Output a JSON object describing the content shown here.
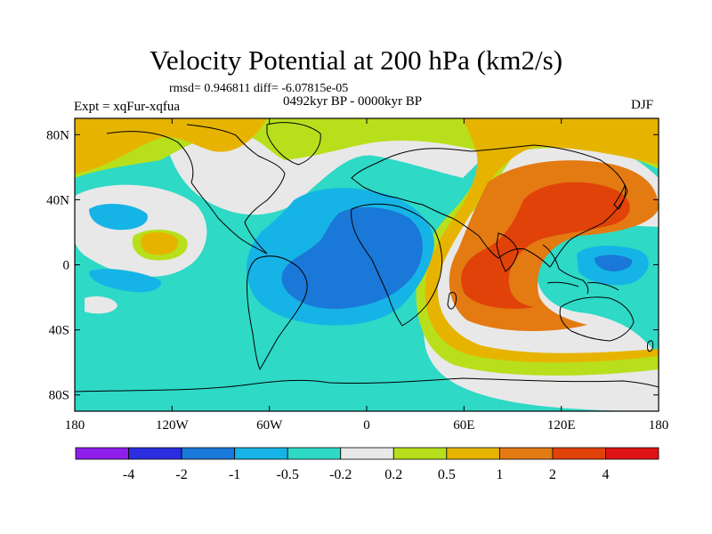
{
  "title": "Velocity Potential at 200 hPa (km2/s)",
  "stats": "rmsd= 0.946811 diff= -6.07815e-05",
  "period": "0492kyr BP - 0000kyr BP",
  "experiment": "Expt = xqFur-xqfua",
  "season": "DJF",
  "map": {
    "projection": "cylindrical-equidistant",
    "lon_range": [
      -180,
      180
    ],
    "lat_range": [
      -90,
      90
    ],
    "coastlines": true
  },
  "axes": {
    "x_ticks": [
      {
        "value": -180,
        "label": "180"
      },
      {
        "value": -120,
        "label": "120W"
      },
      {
        "value": -60,
        "label": "60W"
      },
      {
        "value": 0,
        "label": "0"
      },
      {
        "value": 60,
        "label": "60E"
      },
      {
        "value": 120,
        "label": "120E"
      },
      {
        "value": 180,
        "label": "180"
      }
    ],
    "y_ticks": [
      {
        "value": 80,
        "label": "80N"
      },
      {
        "value": 40,
        "label": "40N"
      },
      {
        "value": 0,
        "label": "0"
      },
      {
        "value": -40,
        "label": "40S"
      },
      {
        "value": -80,
        "label": "80S"
      }
    ]
  },
  "colorbar": {
    "colors": [
      "#8f1eeb",
      "#2b2ee0",
      "#1a78d8",
      "#16b4e6",
      "#2ed9c6",
      "#e8e8e8",
      "#b8df1c",
      "#e6b400",
      "#e47a12",
      "#e0420a",
      "#e01414"
    ],
    "labels": [
      "-4",
      "-2",
      "-1",
      "-0.5",
      "-0.2",
      "0.2",
      "0.5",
      "1",
      "2",
      "4"
    ]
  },
  "field_colors": {
    "neg_05_02": "#2ed9c6",
    "neg_1_05": "#16b4e6",
    "neg_2_1": "#1a78d8",
    "neutral": "#e8e8e8",
    "pos_02_05": "#b8df1c",
    "pos_05_1": "#e6b400",
    "pos_1_2": "#e47a12",
    "pos_2_4": "#e0420a"
  }
}
